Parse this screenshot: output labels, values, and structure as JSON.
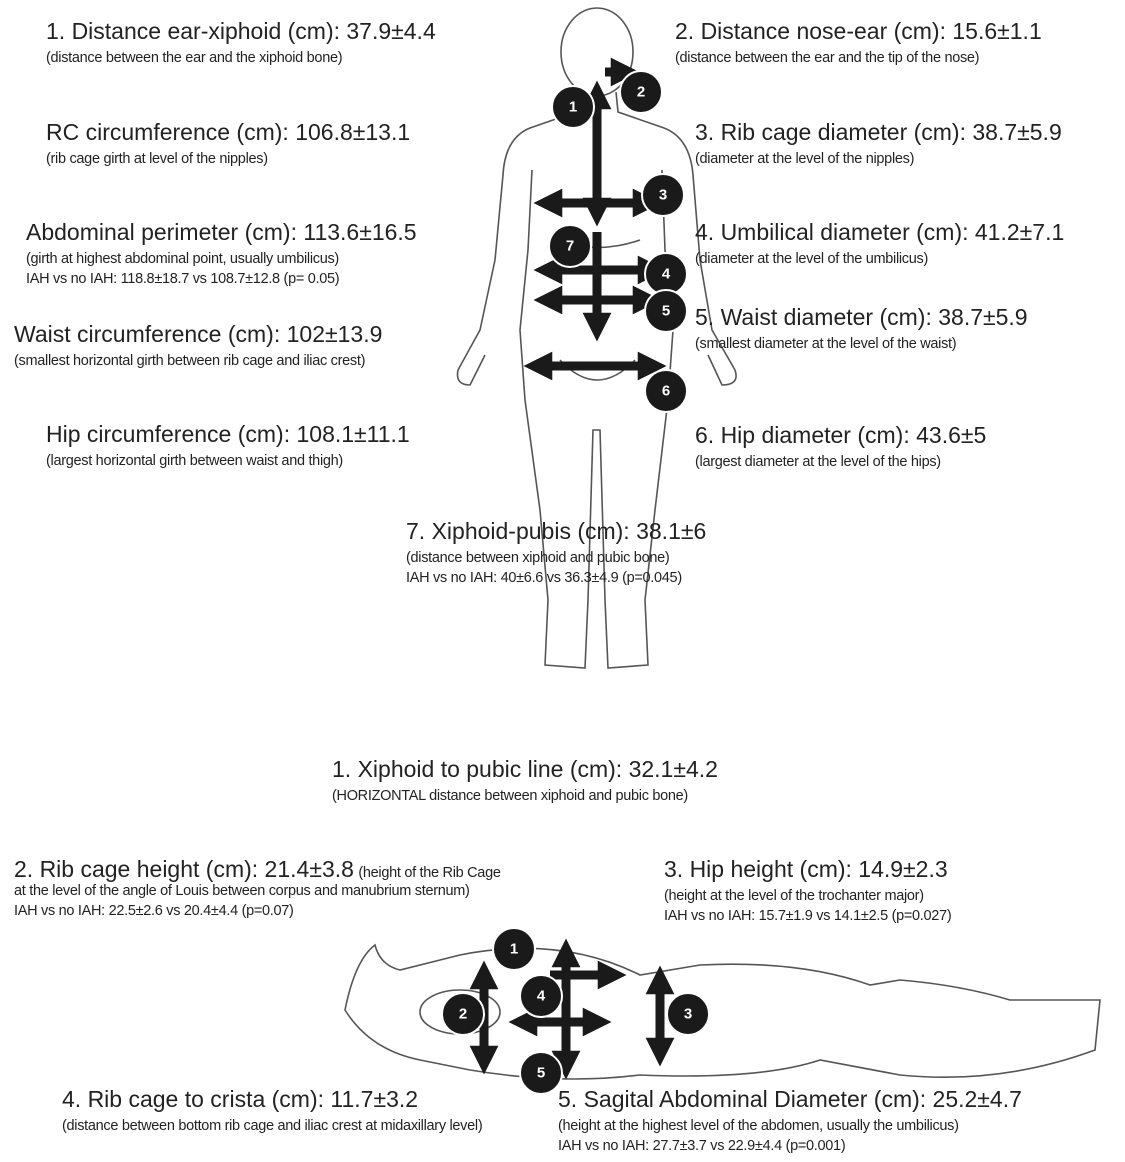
{
  "front_view": {
    "items": [
      {
        "title": "1. Distance ear-xiphoid (cm): 37.9±4.4",
        "description": "(distance between the ear and the xiphoid bone)"
      },
      {
        "title": "2. Distance nose-ear (cm): 15.6±1.1",
        "description": "(distance between the ear and the tip of the nose)"
      },
      {
        "title": "RC circumference (cm): 106.8±13.1",
        "description": "(rib cage girth at level of the nipples)"
      },
      {
        "title": "3. Rib cage diameter (cm): 38.7±5.9",
        "description": "(diameter at the level of the nipples)"
      },
      {
        "title": "Abdominal perimeter (cm): 113.6±16.5",
        "description": "(girth at highest abdominal point, usually umbilicus)",
        "note": "IAH vs no IAH: 118.8±18.7 vs 108.7±12.8 (p= 0.05)"
      },
      {
        "title": "4. Umbilical diameter (cm): 41.2±7.1",
        "description": "(diameter at the level of the umbilicus)"
      },
      {
        "title": "Waist circumference (cm): 102±13.9",
        "description": "(smallest horizontal girth between rib cage and iliac crest)"
      },
      {
        "title": "5. Waist diameter (cm): 38.7±5.9",
        "description": "(smallest diameter at the level of the waist)"
      },
      {
        "title": "Hip circumference (cm): 108.1±11.1",
        "description": "(largest horizontal girth between waist and thigh)"
      },
      {
        "title": "6. Hip diameter (cm): 43.6±5",
        "description": "(largest diameter at the level of the hips)"
      },
      {
        "title": "7. Xiphoid-pubis (cm): 38.1±6",
        "description": "(distance between xiphoid and pubic bone)",
        "note": "IAH vs no IAH: 40±6.6 vs 36.3±4.9 (p=0.045)"
      }
    ],
    "badges": [
      "1",
      "2",
      "3",
      "7",
      "4",
      "5",
      "6"
    ]
  },
  "side_view": {
    "items": [
      {
        "title": "1. Xiphoid to pubic line (cm): 32.1±4.2",
        "description": "(HORIZONTAL distance between xiphoid and pubic bone)"
      },
      {
        "title": "2. Rib cage height (cm):  21.4±3.8",
        "description": "(height of the Rib Cage at the level of the angle of Louis between corpus and manubrium sternum)",
        "note": "IAH vs no IAH: 22.5±2.6 vs 20.4±4.4 (p=0.07)"
      },
      {
        "title": "3. Hip height (cm): 14.9±2.3",
        "description": "(height at the level of the trochanter major)",
        "note": "IAH vs no IAH: 15.7±1.9 vs 14.1±2.5 (p=0.027)"
      },
      {
        "title": "4. Rib cage to crista (cm): 11.7±3.2",
        "description": "(distance between bottom rib cage and iliac crest at midaxillary level)"
      },
      {
        "title": "5. Sagital Abdominal Diameter (cm): 25.2±4.7",
        "description": "(height at the highest level of the abdomen, usually the umbilicus)",
        "note": "IAH vs no IAH: 27.7±3.7 vs 22.9±4.4 (p=0.001)"
      }
    ],
    "badges": [
      "1",
      "2",
      "4",
      "3",
      "5"
    ]
  }
}
